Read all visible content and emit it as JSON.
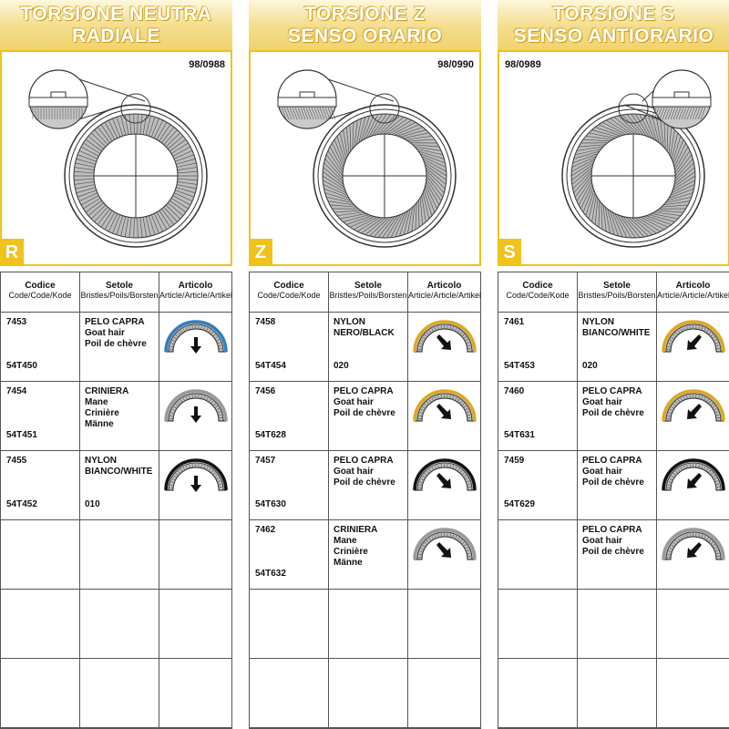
{
  "columns": [
    {
      "title1": "TORSIONE NEUTRA",
      "title2": "RADIALE",
      "ref": "98/0988",
      "badge": "R",
      "hatch": "radial",
      "rows": [
        {
          "code": "7453",
          "sub": "54T450",
          "br": [
            "PELO CAPRA",
            "Goat hair",
            "Poil de chèvre"
          ],
          "br2": "",
          "ring": "#2f7fc0",
          "arrow": "down"
        },
        {
          "code": "7454",
          "sub": "54T451",
          "br": [
            "CRINIERA",
            "Mane",
            "Crinière",
            "Männe"
          ],
          "br2": "",
          "ring": "#9a9a9a",
          "arrow": "down"
        },
        {
          "code": "7455",
          "sub": "54T452",
          "br": [
            "NYLON",
            "BIANCO/WHITE"
          ],
          "br2": "010",
          "ring": "#111111",
          "arrow": "down"
        }
      ]
    },
    {
      "title1": "TORSIONE Z",
      "title2": "SENSO ORARIO",
      "ref": "98/0990",
      "badge": "Z",
      "hatch": "z",
      "rows": [
        {
          "code": "7458",
          "sub": "54T454",
          "br": [
            "NYLON",
            "NERO/BLACK"
          ],
          "br2": "020",
          "ring": "#e0a820",
          "arrow": "right"
        },
        {
          "code": "7456",
          "sub": "54T628",
          "br": [
            "PELO CAPRA",
            "Goat hair",
            "Poil de chèvre"
          ],
          "br2": "",
          "ring": "#e0a820",
          "arrow": "right"
        },
        {
          "code": "7457",
          "sub": "54T630",
          "br": [
            "PELO CAPRA",
            "Goat hair",
            "Poil de chèvre"
          ],
          "br2": "",
          "ring": "#111111",
          "arrow": "right"
        },
        {
          "code": "7462",
          "sub": "54T632",
          "br": [
            "CRINIERA",
            "Mane",
            "Crinière",
            "Männe"
          ],
          "br2": "",
          "ring": "#9a9a9a",
          "arrow": "right"
        }
      ]
    },
    {
      "title1": "TORSIONE S",
      "title2": "SENSO ANTIORARIO",
      "ref": "98/0989",
      "badge": "S",
      "hatch": "s",
      "rows": [
        {
          "code": "7461",
          "sub": "54T453",
          "br": [
            "NYLON",
            "BIANCO/WHITE"
          ],
          "br2": "020",
          "ring": "#e0a820",
          "arrow": "left"
        },
        {
          "code": "7460",
          "sub": "54T631",
          "br": [
            "PELO CAPRA",
            "Goat hair",
            "Poil de chèvre"
          ],
          "br2": "",
          "ring": "#e0a820",
          "arrow": "left"
        },
        {
          "code": "7459",
          "sub": "54T629",
          "br": [
            "PELO CAPRA",
            "Goat hair",
            "Poil de chèvre"
          ],
          "br2": "",
          "ring": "#111111",
          "arrow": "left"
        },
        {
          "code": "",
          "sub": "",
          "br": [
            "PELO CAPRA",
            "Goat hair",
            "Poil de chèvre"
          ],
          "br2": "",
          "ring": "#9a9a9a",
          "arrow": "left"
        }
      ]
    }
  ],
  "table_header": {
    "col1_title": "Codice",
    "col1_sub": "Code/Code/Kode",
    "col2_title": "Setole",
    "col2_sub": "Bristles/Poils/Borsten",
    "col3_title": "Articolo",
    "col3_sub": "Article/Article/Artikel"
  }
}
